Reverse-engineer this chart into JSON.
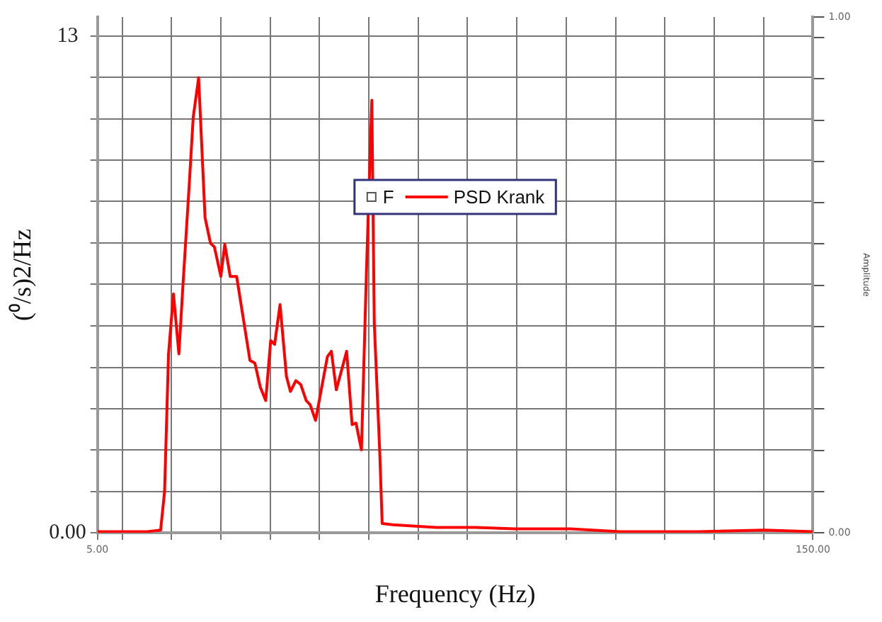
{
  "chart_data": {
    "type": "line",
    "xlabel": "Frequency (Hz)",
    "ylabel": "(⁰/s)2/Hz",
    "y2label": "Amplitude",
    "series": [
      {
        "name": "F",
        "type": "scatter",
        "color": "#555555",
        "marker": "square"
      },
      {
        "name": "PSD Krank",
        "color": "#ff0000",
        "marker": "none",
        "line_style": "solid",
        "x": [
          5,
          15.1,
          17.8,
          18.6,
          19.4,
          20.4,
          21.5,
          22.3,
          23.6,
          24.4,
          25.5,
          26.8,
          27.9,
          28.7,
          30.0,
          30.8,
          31.9,
          33.2,
          35.9,
          36.9,
          38.0,
          39.1,
          40.1,
          40.9,
          42.0,
          43.3,
          44.1,
          45.2,
          46.2,
          47.3,
          48.1,
          49.2,
          51.6,
          52.4,
          53.4,
          55.5,
          56.6,
          57.4,
          58.5,
          59.5,
          60.6,
          61.1,
          62.2,
          62.7,
          64.9,
          73.6,
          81.6,
          89.6,
          100.8,
          110.9,
          126.8,
          140.1,
          150
        ],
        "values": [
          0.03,
          0.03,
          0.07,
          1.08,
          4.68,
          6.25,
          4.68,
          6.43,
          9.12,
          10.87,
          11.91,
          8.25,
          7.58,
          7.48,
          6.71,
          7.55,
          6.71,
          6.71,
          4.51,
          4.44,
          3.81,
          3.46,
          5.03,
          4.93,
          5.97,
          4.09,
          3.7,
          3.98,
          3.88,
          3.46,
          3.35,
          2.94,
          4.61,
          4.75,
          3.74,
          4.75,
          2.83,
          2.87,
          2.17,
          6.78,
          11.32,
          5.49,
          2.13,
          0.24,
          0.21,
          0.14,
          0.14,
          0.1,
          0.1,
          0.03,
          0.03,
          0.07,
          0.03
        ]
      }
    ],
    "xlim": [
      5,
      150
    ],
    "xticks": [
      {
        "value": 5,
        "label": "5.00"
      },
      {
        "value": 10,
        "label": null
      },
      {
        "value": 20,
        "label": null
      },
      {
        "value": 30,
        "label": null
      },
      {
        "value": 40,
        "label": null
      },
      {
        "value": 50,
        "label": null
      },
      {
        "value": 60,
        "label": null
      },
      {
        "value": 70,
        "label": null
      },
      {
        "value": 80,
        "label": null
      },
      {
        "value": 90,
        "label": null
      },
      {
        "value": 100,
        "label": null
      },
      {
        "value": 110,
        "label": null
      },
      {
        "value": 120,
        "label": null
      },
      {
        "value": 130,
        "label": null
      },
      {
        "value": 140,
        "label": null
      },
      {
        "value": 150,
        "label": "150.00"
      }
    ],
    "ylim": [
      0,
      13.5
    ],
    "yticks": [
      {
        "value": 0,
        "label": "0.00"
      },
      {
        "value": 1.08,
        "label": null
      },
      {
        "value": 2.17,
        "label": null
      },
      {
        "value": 3.25,
        "label": null
      },
      {
        "value": 4.33,
        "label": null
      },
      {
        "value": 5.42,
        "label": null
      },
      {
        "value": 6.5,
        "label": null
      },
      {
        "value": 7.58,
        "label": null
      },
      {
        "value": 8.67,
        "label": null
      },
      {
        "value": 9.75,
        "label": null
      },
      {
        "value": 10.83,
        "label": null
      },
      {
        "value": 11.92,
        "label": null
      },
      13
    ],
    "y2lim": [
      0,
      1
    ],
    "y2ticks": [
      {
        "value": 0,
        "label": "0.00"
      },
      {
        "value": 0.08,
        "label": null
      },
      {
        "value": 0.16,
        "label": null
      },
      {
        "value": 0.24,
        "label": null
      },
      {
        "value": 0.32,
        "label": null
      },
      {
        "value": 0.4,
        "label": null
      },
      {
        "value": 0.48,
        "label": null
      },
      {
        "value": 0.56,
        "label": null
      },
      {
        "value": 0.64,
        "label": null
      },
      {
        "value": 0.72,
        "label": null
      },
      {
        "value": 0.8,
        "label": null
      },
      {
        "value": 0.88,
        "label": null
      },
      {
        "value": 0.96,
        "label": null
      },
      {
        "value": 1,
        "label": "1.00"
      }
    ],
    "grid": true,
    "legend": "top"
  }
}
